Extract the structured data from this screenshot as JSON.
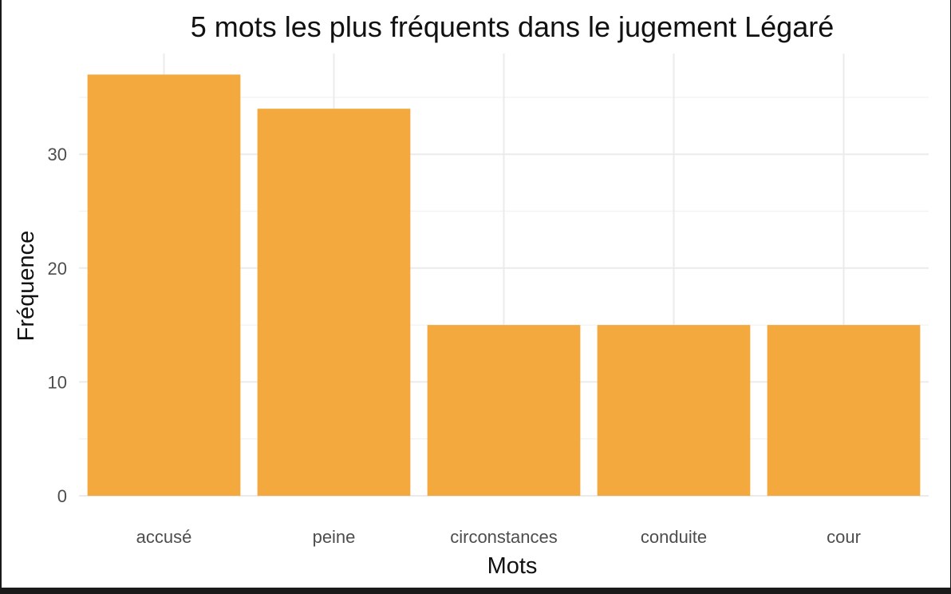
{
  "chart_data": {
    "type": "bar",
    "title": "5 mots les plus fréquents dans le jugement Légaré",
    "xlabel": "Mots",
    "ylabel": "Fréquence",
    "categories": [
      "accusé",
      "peine",
      "circonstances",
      "conduite",
      "cour"
    ],
    "values": [
      37,
      34,
      15,
      15,
      15
    ],
    "ylim": [
      0,
      38.85
    ],
    "yticks": [
      0,
      10,
      20,
      30
    ],
    "grid": true,
    "legend": "none",
    "bar_color": "#F4A93E"
  }
}
